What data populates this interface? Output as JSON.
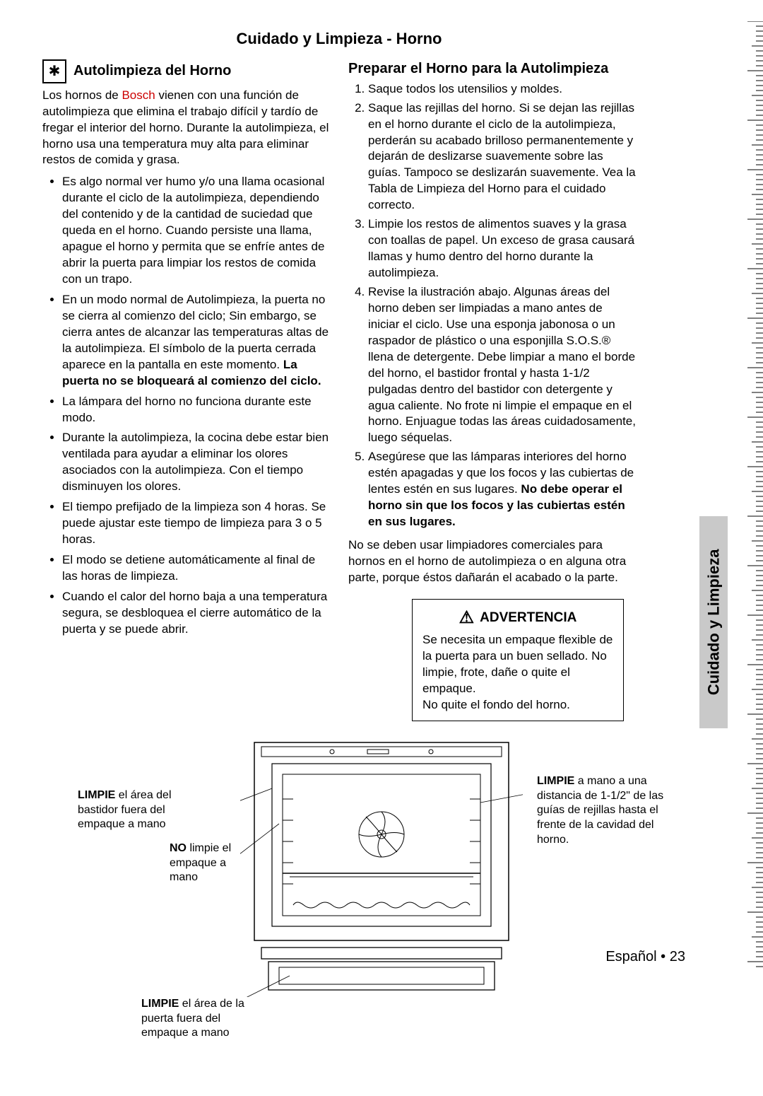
{
  "colors": {
    "text": "#000000",
    "brand_red": "#cc0000",
    "background": "#ffffff",
    "tab_gray": "#c9c9c9"
  },
  "typography": {
    "body_pt": 17,
    "heading_pt": 20,
    "title_pt": 22,
    "font_family": "Arial"
  },
  "page_title": "Cuidado y Limpieza - Horno",
  "side_tab": "Cuidado y Limpieza",
  "footer": {
    "lang": "Español",
    "sep": " • ",
    "page": "23"
  },
  "left": {
    "icon_name": "self-clean-icon",
    "heading": "Autolimpieza del Horno",
    "intro_pre": "Los hornos de ",
    "brand": "Bosch",
    "intro_post": " vienen con una función de autolimpieza que elimina el trabajo difícil y tardío de fregar el interior del horno. Durante la autolimpieza, el horno usa una temperatura muy alta para eliminar restos de comida y grasa.",
    "bullets": [
      "Es algo normal ver humo y/o una llama ocasional durante el ciclo de la autolimpieza, dependiendo del contenido y de la cantidad de suciedad que queda en el horno. Cuando persiste una llama, apague el horno y permita que se enfríe antes de abrir la puerta para limpiar los restos de comida con un trapo.",
      "En un modo normal de Autolimpieza, la puerta no se cierra al comienzo del ciclo; Sin embargo, se cierra antes de alcanzar las temperaturas altas de la autolimpieza. El símbolo de la puerta cerrada aparece en la pantalla en este momento. ",
      "La lámpara del horno no funciona durante este modo.",
      "Durante la autolimpieza, la cocina debe estar bien ventilada para ayudar a eliminar los olores asociados con la autolimpieza. Con el tiempo disminuyen los olores.",
      "El tiempo prefijado de la limpieza son 4 horas. Se puede ajustar este tiempo de limpieza para 3 o 5 horas.",
      "El modo se detiene automáticamente al final de las horas de limpieza.",
      "Cuando el calor del horno baja a una temperatura segura, se desbloquea el cierre automático de la puerta y se puede abrir."
    ],
    "bullet1_bold_tail": "La puerta no se bloqueará al comienzo del ciclo."
  },
  "right": {
    "heading": "Preparar el Horno para la Autolimpieza",
    "steps": [
      "Saque todos los utensilios y moldes.",
      "Saque las rejillas del horno. Si se dejan las rejillas en el horno durante el ciclo de la autolimpieza, perderán su acabado brilloso permanentemente y dejarán de deslizarse suavemente sobre las guías. Tampoco se deslizarán suavemente. Vea la Tabla de Limpieza del Horno para el cuidado correcto.",
      "Limpie los restos de alimentos suaves y la grasa con toallas de papel. Un exceso de grasa causará llamas y humo dentro del horno durante la autolimpieza.",
      "Revise la ilustración abajo. Algunas áreas del horno deben ser limpiadas a mano antes de iniciar el ciclo. Use una esponja jabonosa o un raspador de plástico o una esponjilla S.O.S.® llena de detergente. Debe limpiar a mano el borde del horno, el bastidor frontal y hasta 1-1/2 pulgadas dentro del bastidor con detergente y agua caliente. No frote ni limpie el empaque en el horno. Enjuague todas las áreas cuidadosamente, luego séquelas.",
      "Asegúrese que las lámparas interiores del horno estén apagadas y que los focos y las cubiertas de lentes estén en sus lugares. "
    ],
    "step5_bold_tail": "No debe operar el horno sin que los focos y las cubiertas estén en sus lugares.",
    "note": "No se deben usar limpiadores comerciales para hornos en el horno de autolimpieza o en alguna otra parte, porque éstos dañarán el acabado o la parte.",
    "warning": {
      "title": "ADVERTENCIA",
      "body1": "Se necesita un empaque flexible de la puerta para un buen sellado. No limpie, frote, dañe o quite el empaque.",
      "body2": "No quite el fondo del horno."
    }
  },
  "diagram": {
    "callouts": {
      "frame": {
        "bold": "LIMPIE",
        "rest": " el área del bastidor fuera del empaque a mano"
      },
      "gasket": {
        "bold": "NO",
        "rest": " limpie el empaque a mano"
      },
      "door": {
        "bold": "LIMPIE",
        "rest": " el área de la puerta fuera del empaque a mano"
      },
      "cavity": {
        "bold": "LIMPIE",
        "rest": " a mano a una distancia de 1-1/2\" de las guías de rejillas hasta el frente de la cavidad del horno."
      }
    }
  }
}
